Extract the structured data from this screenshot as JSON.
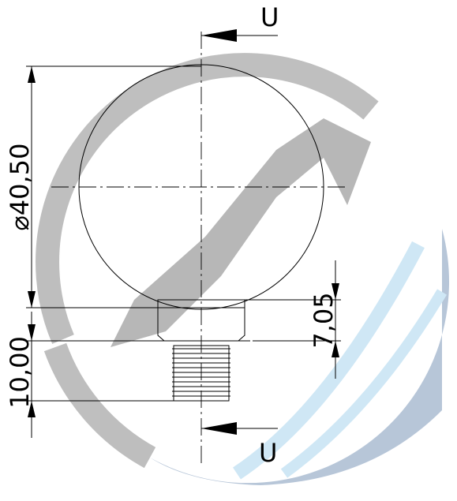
{
  "section_labels": {
    "top": "U",
    "bottom": "U"
  },
  "dimensions": {
    "ball_diameter": "⌀40,50",
    "neck_height": "7,05",
    "thread_length": "10,00"
  }
}
